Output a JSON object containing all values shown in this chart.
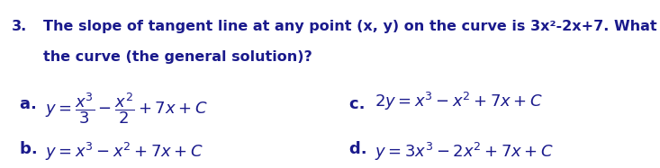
{
  "background_color": "#ffffff",
  "question_number": "3.",
  "question_line1": "The slope of tangent line at any point (x, y) on the curve is 3x²-2x+7. What is the equation of",
  "question_line2": "the curve (the general solution)?",
  "option_a_label": "a. ",
  "option_a_math": "$y = \\dfrac{x^3}{3} - \\dfrac{x^2}{2} + 7x + C$",
  "option_b_label": "b. ",
  "option_b_math": "$y = x^3 - x^2 + 7x + C$",
  "option_c_label": "c. ",
  "option_c_math": "$2y = x^3 - x^2 + 7x + C$",
  "option_d_label": "d. ",
  "option_d_math": "$y = 3x^3 - 2x^2 + 7x + C$",
  "text_color": "#1a1a8c",
  "question_fontsize": 11.5,
  "option_fontsize": 13.0,
  "option_label_fontsize": 13.0
}
